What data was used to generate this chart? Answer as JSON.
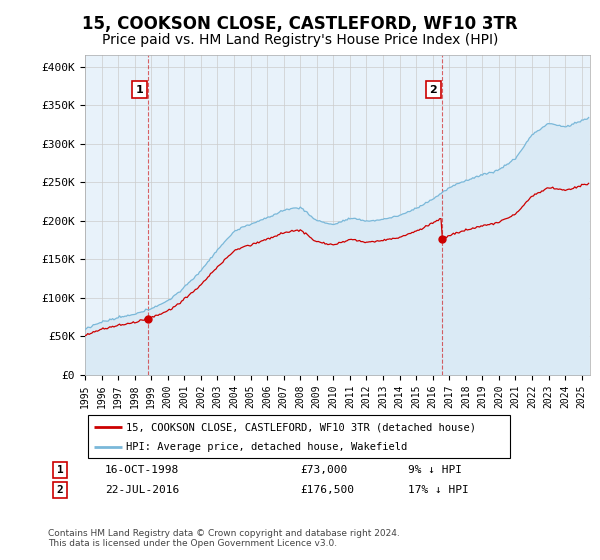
{
  "title": "15, COOKSON CLOSE, CASTLEFORD, WF10 3TR",
  "subtitle": "Price paid vs. HM Land Registry's House Price Index (HPI)",
  "title_fontsize": 12,
  "subtitle_fontsize": 10,
  "ylabel_ticks": [
    "£0",
    "£50K",
    "£100K",
    "£150K",
    "£200K",
    "£250K",
    "£300K",
    "£350K",
    "£400K"
  ],
  "ytick_values": [
    0,
    50000,
    100000,
    150000,
    200000,
    250000,
    300000,
    350000,
    400000
  ],
  "ylim": [
    0,
    415000
  ],
  "xlim_start": 1995.0,
  "xlim_end": 2025.5,
  "transaction1_date": 1998.79,
  "transaction1_price": 73000,
  "transaction2_date": 2016.55,
  "transaction2_price": 176500,
  "legend_line1": "15, COOKSON CLOSE, CASTLEFORD, WF10 3TR (detached house)",
  "legend_line2": "HPI: Average price, detached house, Wakefield",
  "table_row1": [
    "1",
    "16-OCT-1998",
    "£73,000",
    "9% ↓ HPI"
  ],
  "table_row2": [
    "2",
    "22-JUL-2016",
    "£176,500",
    "17% ↓ HPI"
  ],
  "footer": "Contains HM Land Registry data © Crown copyright and database right 2024.\nThis data is licensed under the Open Government Licence v3.0.",
  "hpi_color": "#7ab8d9",
  "hpi_fill_color": "#daeaf5",
  "price_color": "#cc0000",
  "grid_color": "#cccccc",
  "background_color": "#ffffff",
  "box_color": "#cc0000",
  "chart_bg": "#e8f2fa"
}
